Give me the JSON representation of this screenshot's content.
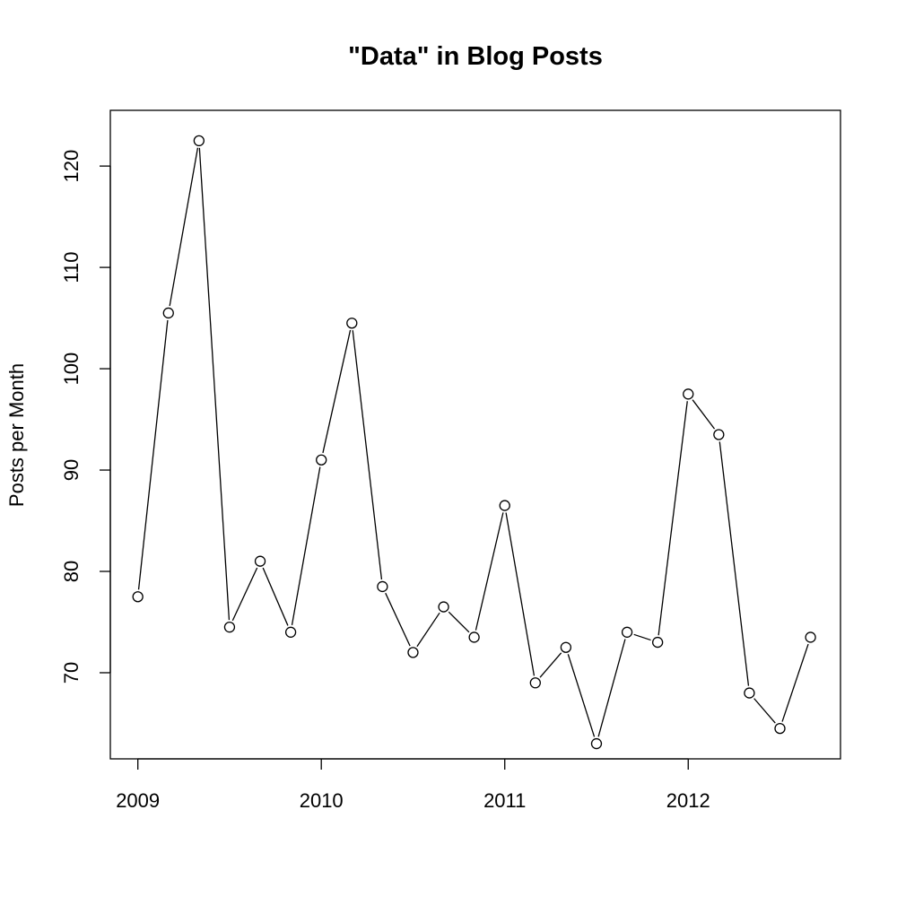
{
  "chart_data": {
    "type": "line",
    "title": "\"Data\" in Blog Posts",
    "xlabel": "",
    "ylabel": "Posts per Month",
    "x_ticks": [
      2009,
      2010,
      2011,
      2012
    ],
    "y_ticks": [
      70,
      80,
      90,
      100,
      110,
      120
    ],
    "xlim": [
      2008.85,
      2012.83
    ],
    "ylim": [
      61.5,
      125.5
    ],
    "grid": false,
    "markers": "open-circle",
    "series": [
      {
        "x": [
          2009.0,
          2009.1667,
          2009.3333,
          2009.5,
          2009.6667,
          2009.8333,
          2010.0,
          2010.1667,
          2010.3333,
          2010.5,
          2010.6667,
          2010.8333,
          2011.0,
          2011.1667,
          2011.3333,
          2011.5,
          2011.6667,
          2011.8333,
          2012.0,
          2012.1667,
          2012.3333,
          2012.5,
          2012.6667
        ],
        "y": [
          77.5,
          105.5,
          122.5,
          74.5,
          81.0,
          74.0,
          91.0,
          104.5,
          78.5,
          72.0,
          76.5,
          73.5,
          86.5,
          69.0,
          72.5,
          63.0,
          74.0,
          73.0,
          97.5,
          93.5,
          68.0,
          64.5,
          73.5
        ]
      }
    ]
  }
}
